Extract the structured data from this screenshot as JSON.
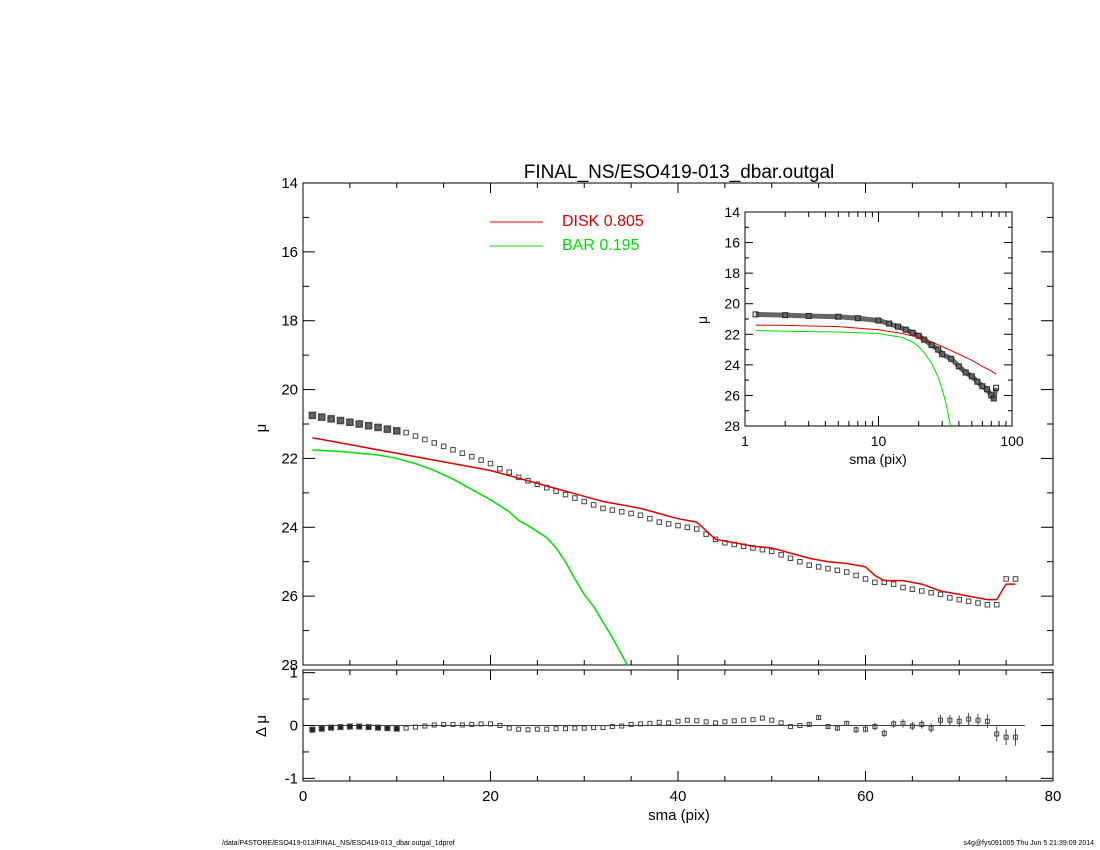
{
  "chart_data": [
    {
      "id": "main",
      "type": "scatter",
      "title": "FINAL_NS/ESO419-013_dbar.outgal",
      "xlabel": "",
      "ylabel": "μ",
      "xlim": [
        0,
        80
      ],
      "ylim": [
        28,
        14
      ],
      "y_inverted": true,
      "yticks": [
        "14",
        "16",
        "18",
        "20",
        "22",
        "24",
        "26",
        "28"
      ],
      "xticks": [
        0,
        20,
        40,
        60,
        80
      ],
      "legend_placement": "top-center",
      "series": [
        {
          "name": "DISK",
          "label": "DISK  0.805",
          "kind": "line",
          "color": "#dd0000",
          "x": [
            1,
            5,
            10,
            15,
            18,
            20,
            22,
            24,
            26,
            28,
            30,
            32,
            34,
            36,
            38,
            40,
            42,
            43,
            44,
            46,
            48,
            50,
            52,
            54,
            56,
            58,
            60,
            61,
            62,
            64,
            66,
            68,
            70,
            72,
            73,
            74,
            75,
            76
          ],
          "y": [
            21.4,
            21.6,
            21.85,
            22.1,
            22.25,
            22.35,
            22.5,
            22.65,
            22.8,
            22.95,
            23.1,
            23.25,
            23.35,
            23.45,
            23.6,
            23.75,
            23.85,
            24.1,
            24.35,
            24.45,
            24.55,
            24.6,
            24.75,
            24.9,
            25.0,
            25.05,
            25.15,
            25.4,
            25.55,
            25.55,
            25.65,
            25.85,
            25.95,
            26.05,
            26.1,
            26.1,
            25.65,
            25.65
          ]
        },
        {
          "name": "BAR",
          "label": "BAR  0.195",
          "kind": "line",
          "color": "#00dd00",
          "x": [
            1,
            4,
            8,
            10,
            12,
            14,
            16,
            18,
            20,
            22,
            23,
            24,
            26,
            27,
            28,
            29,
            30,
            31,
            32,
            33,
            34,
            35
          ],
          "y": [
            21.75,
            21.8,
            21.9,
            22.0,
            22.15,
            22.35,
            22.6,
            22.9,
            23.2,
            23.55,
            23.8,
            23.95,
            24.3,
            24.6,
            25.0,
            25.5,
            25.95,
            26.3,
            26.75,
            27.2,
            27.7,
            28.2
          ]
        },
        {
          "name": "data",
          "kind": "markers",
          "color": "#444444",
          "x": [
            1,
            2,
            3,
            4,
            5,
            6,
            7,
            8,
            9,
            10,
            11,
            12,
            13,
            14,
            15,
            16,
            17,
            18,
            19,
            20,
            21,
            22,
            23,
            24,
            25,
            26,
            27,
            28,
            29,
            30,
            31,
            32,
            33,
            34,
            35,
            36,
            37,
            38,
            39,
            40,
            41,
            42,
            43,
            44,
            45,
            46,
            47,
            48,
            49,
            50,
            51,
            52,
            53,
            54,
            55,
            56,
            57,
            58,
            59,
            60,
            61,
            62,
            63,
            64,
            65,
            66,
            67,
            68,
            69,
            70,
            71,
            72,
            73,
            74,
            75,
            76
          ],
          "y": [
            20.75,
            20.8,
            20.85,
            20.9,
            20.95,
            21.0,
            21.05,
            21.1,
            21.15,
            21.2,
            21.25,
            21.35,
            21.45,
            21.55,
            21.65,
            21.75,
            21.85,
            21.95,
            22.05,
            22.15,
            22.3,
            22.4,
            22.55,
            22.65,
            22.75,
            22.85,
            22.95,
            23.05,
            23.15,
            23.25,
            23.35,
            23.45,
            23.5,
            23.55,
            23.6,
            23.65,
            23.75,
            23.85,
            23.9,
            23.95,
            24.0,
            24.05,
            24.2,
            24.35,
            24.45,
            24.5,
            24.55,
            24.6,
            24.65,
            24.7,
            24.8,
            24.9,
            25.0,
            25.1,
            25.15,
            25.2,
            25.25,
            25.3,
            25.4,
            25.5,
            25.6,
            25.6,
            25.65,
            25.75,
            25.8,
            25.85,
            25.9,
            25.95,
            26.05,
            26.1,
            26.15,
            26.2,
            26.25,
            26.25,
            25.5,
            25.5
          ]
        }
      ]
    },
    {
      "id": "residual",
      "type": "scatter",
      "title": "",
      "xlabel": "sma (pix)",
      "ylabel": "Δ μ",
      "xlim": [
        0,
        80
      ],
      "ylim": [
        -1.05,
        1.05
      ],
      "yticks": [
        "1",
        "0",
        "-1"
      ],
      "xticks": [
        "0",
        "20",
        "40",
        "60",
        "80"
      ],
      "series": [
        {
          "name": "residual",
          "kind": "markers-errorbars",
          "color": "#444444",
          "x": [
            1,
            2,
            3,
            4,
            5,
            6,
            7,
            8,
            9,
            10,
            11,
            12,
            13,
            14,
            15,
            16,
            17,
            18,
            19,
            20,
            21,
            22,
            23,
            24,
            25,
            26,
            27,
            28,
            29,
            30,
            31,
            32,
            33,
            34,
            35,
            36,
            37,
            38,
            39,
            40,
            41,
            42,
            43,
            44,
            45,
            46,
            47,
            48,
            49,
            50,
            51,
            52,
            53,
            54,
            55,
            56,
            57,
            58,
            59,
            60,
            61,
            62,
            63,
            64,
            65,
            66,
            67,
            68,
            69,
            70,
            71,
            72,
            73,
            74,
            75,
            76
          ],
          "y": [
            -0.08,
            -0.06,
            -0.04,
            -0.03,
            -0.02,
            -0.02,
            -0.03,
            -0.04,
            -0.05,
            -0.06,
            -0.05,
            -0.03,
            -0.01,
            0.01,
            0.02,
            0.02,
            0.01,
            0.02,
            0.03,
            0.03,
            0.0,
            -0.05,
            -0.07,
            -0.08,
            -0.07,
            -0.07,
            -0.06,
            -0.06,
            -0.05,
            -0.05,
            -0.04,
            -0.04,
            -0.02,
            -0.01,
            0.02,
            0.03,
            0.04,
            0.06,
            0.05,
            0.08,
            0.1,
            0.09,
            0.07,
            0.05,
            0.07,
            0.09,
            0.1,
            0.11,
            0.14,
            0.1,
            0.05,
            -0.02,
            0.0,
            0.02,
            0.15,
            -0.02,
            -0.05,
            0.04,
            -0.08,
            -0.07,
            -0.02,
            -0.15,
            0.03,
            0.04,
            -0.01,
            0.02,
            -0.05,
            0.1,
            0.1,
            0.08,
            0.12,
            0.1,
            0.08,
            -0.16,
            -0.22,
            -0.22
          ],
          "err": [
            0.02,
            0.02,
            0.02,
            0.02,
            0.02,
            0.02,
            0.02,
            0.02,
            0.02,
            0.02,
            0.02,
            0.02,
            0.02,
            0.02,
            0.02,
            0.02,
            0.02,
            0.02,
            0.02,
            0.02,
            0.02,
            0.02,
            0.02,
            0.02,
            0.02,
            0.02,
            0.02,
            0.02,
            0.02,
            0.02,
            0.02,
            0.02,
            0.02,
            0.02,
            0.02,
            0.02,
            0.02,
            0.02,
            0.02,
            0.02,
            0.02,
            0.02,
            0.02,
            0.02,
            0.02,
            0.02,
            0.02,
            0.02,
            0.02,
            0.02,
            0.02,
            0.03,
            0.03,
            0.04,
            0.04,
            0.05,
            0.05,
            0.05,
            0.06,
            0.06,
            0.07,
            0.07,
            0.07,
            0.08,
            0.08,
            0.08,
            0.09,
            0.1,
            0.1,
            0.11,
            0.12,
            0.12,
            0.13,
            0.14,
            0.15,
            0.16
          ]
        }
      ]
    },
    {
      "id": "inset",
      "type": "scatter",
      "title": "",
      "xlabel": "sma (pix)",
      "ylabel": "μ",
      "xscale": "log",
      "xlim": [
        1,
        100
      ],
      "ylim": [
        28,
        14
      ],
      "y_inverted": true,
      "xticks": [
        "1",
        "10",
        "100"
      ],
      "yticks": [
        "14",
        "16",
        "18",
        "20",
        "22",
        "24",
        "26",
        "28"
      ],
      "series": [
        {
          "name": "data",
          "kind": "thick-markers",
          "color": "#444444",
          "x": [
            1.2,
            2,
            3,
            5,
            7,
            10,
            12,
            14,
            16,
            18,
            20,
            22,
            25,
            28,
            30,
            35,
            40,
            45,
            50,
            55,
            60,
            65,
            70,
            73,
            76
          ],
          "y": [
            20.7,
            20.75,
            20.8,
            20.85,
            20.95,
            21.1,
            21.3,
            21.5,
            21.7,
            21.9,
            22.1,
            22.35,
            22.7,
            23.0,
            23.3,
            23.6,
            24.1,
            24.5,
            24.75,
            25.1,
            25.4,
            25.6,
            26.0,
            26.2,
            25.5
          ]
        },
        {
          "name": "DISK",
          "kind": "line",
          "color": "#dd0000",
          "x": [
            1.2,
            2,
            5,
            10,
            15,
            20,
            25,
            30,
            40,
            50,
            60,
            70,
            76
          ],
          "y": [
            21.4,
            21.42,
            21.5,
            21.7,
            21.95,
            22.2,
            22.5,
            22.8,
            23.3,
            23.7,
            24.1,
            24.4,
            24.6
          ]
        },
        {
          "name": "BAR",
          "kind": "line",
          "color": "#00dd00",
          "x": [
            1.2,
            2,
            5,
            10,
            15,
            18,
            20,
            22,
            25,
            28,
            30,
            32,
            35
          ],
          "y": [
            21.75,
            21.8,
            21.85,
            21.95,
            22.2,
            22.5,
            22.8,
            23.2,
            23.9,
            24.8,
            25.6,
            26.5,
            28.2
          ]
        }
      ]
    }
  ],
  "footer": {
    "left": "/data/P4STORE/ESO419-013/FINAL_NS/ESO419-013_dbar.outgal_1dprof",
    "right": "s4g@fys091005  Thu Jun  5 21:39:09 2014"
  }
}
